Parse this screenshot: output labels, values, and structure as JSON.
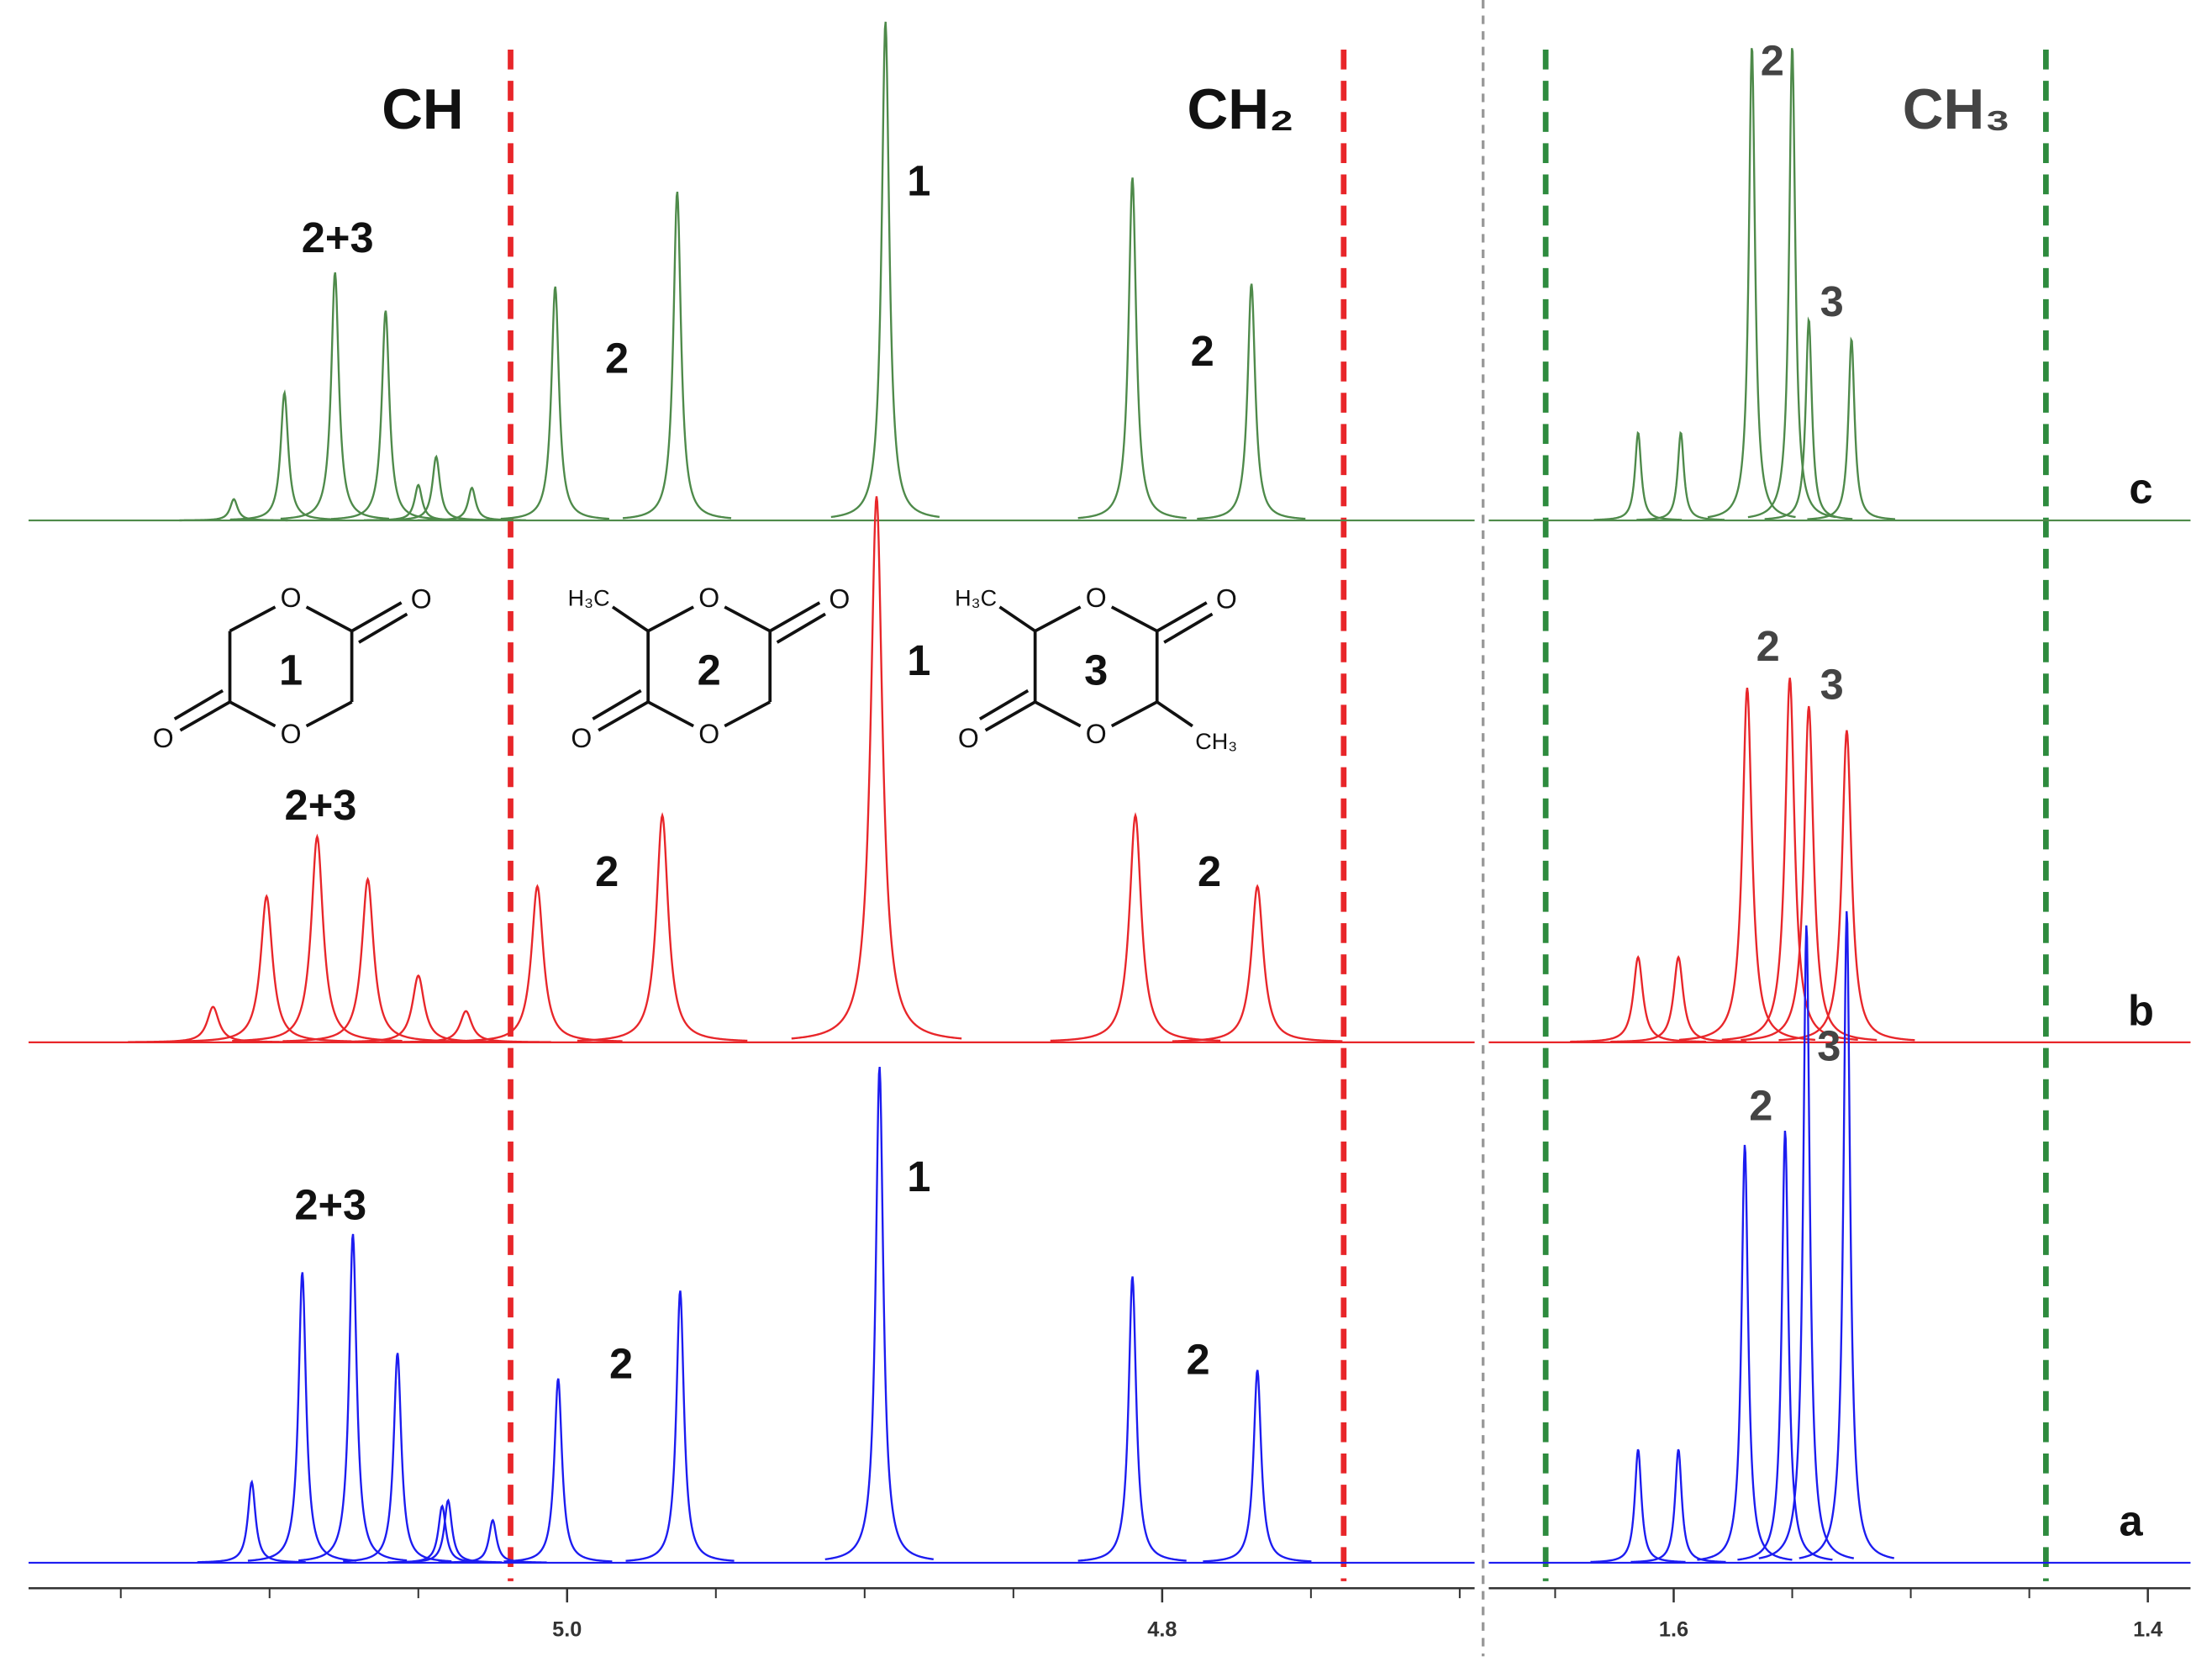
{
  "chart_data": [
    {
      "type": "spectrum",
      "labels": [
        "CH",
        "CH₂"
      ],
      "xlim": [
        5.181,
        4.695
      ],
      "xticks": [
        {
          "value": 5.0,
          "label": "5.0"
        },
        4.8
      ],
      "xminorticks": [
        5.15,
        5.1,
        5.05,
        4.95,
        4.9,
        4.85,
        4.75,
        4.7
      ],
      "integration_limits": [
        5.019,
        4.739
      ],
      "limit_color": "#e8262a",
      "series": [
        {
          "color": "#4e8a4a",
          "annotations": [
            "2+3",
            "2",
            "1",
            "2"
          ],
          "x": [
            5.112,
            5.095,
            5.078,
            5.061,
            5.05,
            5.044,
            5.032,
            5.004,
            4.963,
            4.893,
            4.81,
            4.77
          ],
          "values": [
            15,
            90,
            175,
            148,
            25,
            45,
            23,
            165,
            232,
            352,
            242,
            167
          ]
        },
        {
          "color": "#e8262a",
          "annotations": [
            "2+3",
            "2",
            "1",
            "2"
          ],
          "x": [
            5.119,
            5.101,
            5.084,
            5.067,
            5.05,
            5.034,
            5.01,
            4.968,
            4.896,
            4.809,
            4.768
          ],
          "values": [
            25,
            103,
            145,
            115,
            47,
            22,
            110,
            160,
            385,
            160,
            110
          ]
        },
        {
          "color": "#1c1cf0",
          "annotations": [
            "2+3",
            "2",
            "1",
            "2"
          ],
          "x": [
            5.106,
            5.089,
            5.072,
            5.057,
            5.042,
            5.04,
            5.025,
            5.003,
            4.962,
            4.895,
            4.81,
            4.768
          ],
          "values": [
            57,
            205,
            232,
            148,
            40,
            44,
            30,
            130,
            192,
            350,
            202,
            136
          ]
        }
      ]
    },
    {
      "type": "spectrum",
      "labels": [
        "CH₃"
      ],
      "xlim": [
        1.678,
        1.382
      ],
      "xticks": [
        1.6,
        1.4
      ],
      "xminorticks": [
        1.65,
        1.55,
        1.5,
        1.45
      ],
      "integration_limits": [
        1.654,
        1.443
      ],
      "limit_color": "#2e8b3e",
      "series": [
        {
          "name": "c",
          "color": "#4e8a4a",
          "annotations": [
            "2",
            "3"
          ],
          "x": [
            1.615,
            1.597,
            1.567,
            1.55,
            1.543,
            1.525
          ],
          "values": [
            62,
            62,
            335,
            335,
            142,
            128
          ]
        },
        {
          "name": "b",
          "color": "#e8262a",
          "annotations": [
            "2",
            "3"
          ],
          "x": [
            1.615,
            1.598,
            1.569,
            1.551,
            1.543,
            1.527
          ],
          "values": [
            60,
            60,
            250,
            257,
            237,
            220
          ]
        },
        {
          "name": "a",
          "color": "#1c1cf0",
          "annotations": [
            "2",
            "3"
          ],
          "x": [
            1.615,
            1.598,
            1.57,
            1.553,
            1.544,
            1.527
          ],
          "values": [
            80,
            80,
            295,
            305,
            450,
            460
          ]
        }
      ]
    }
  ],
  "structures": [
    {
      "number": "1",
      "atom": "O"
    },
    {
      "number": "2",
      "atom": "O",
      "methyl": [
        "H₃C"
      ]
    },
    {
      "number": "3",
      "atom": "O",
      "methyl": [
        "H₃C",
        "CH₃"
      ]
    }
  ]
}
